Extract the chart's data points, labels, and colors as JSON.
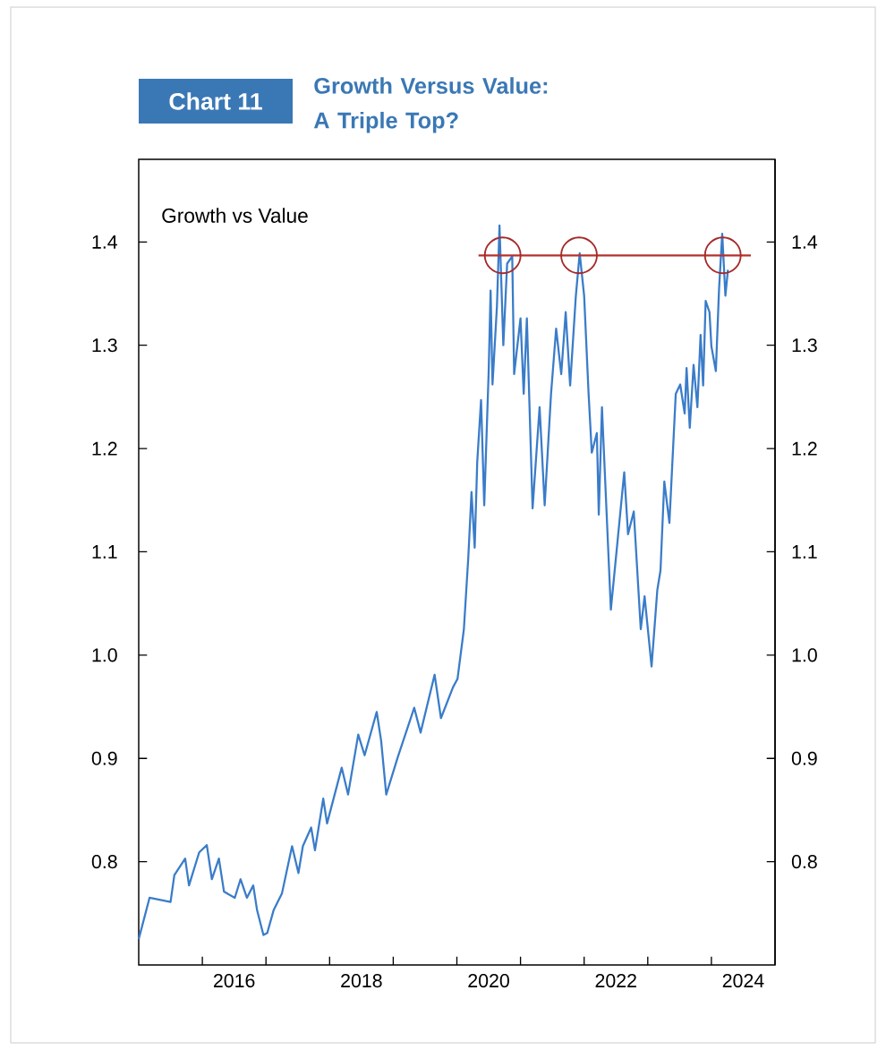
{
  "chart_data": {
    "type": "line",
    "title": "Growth Versus Value: A Triple Top?",
    "subtitle": "Growth vs Value",
    "annotations": [
      "Chart 11"
    ],
    "xlim": [
      2015.0,
      2025.0
    ],
    "xticks": [
      {
        "value": 2016,
        "label": null
      },
      {
        "value": 2017,
        "label": null
      },
      {
        "value": 2018,
        "label": null
      },
      {
        "value": 2019,
        "label": null
      },
      {
        "value": 2020,
        "label": null
      },
      {
        "value": 2021,
        "label": null
      },
      {
        "value": 2022,
        "label": null
      },
      {
        "value": 2023,
        "label": null
      },
      {
        "value": 2024,
        "label": null
      },
      {
        "value": 2016.5,
        "label": "2016"
      },
      {
        "value": 2018.5,
        "label": "2018"
      },
      {
        "value": 2020.5,
        "label": "2020"
      },
      {
        "value": 2022.5,
        "label": "2022"
      },
      {
        "value": 2024.5,
        "label": "2024"
      }
    ],
    "ylim": [
      0.7,
      1.48
    ],
    "yticks": [
      {
        "value": 0.8,
        "label": "0.8"
      },
      {
        "value": 0.9,
        "label": "0.9"
      },
      {
        "value": 1.0,
        "label": "1.0"
      },
      {
        "value": 1.1,
        "label": "1.1"
      },
      {
        "value": 1.2,
        "label": "1.2"
      },
      {
        "value": 1.3,
        "label": "1.3"
      },
      {
        "value": 1.4,
        "label": "1.4"
      }
    ],
    "y2lim": [
      0.7,
      1.48
    ],
    "y2ticks": [
      {
        "value": 0.8,
        "label": "0.8"
      },
      {
        "value": 0.9,
        "label": "0.9"
      },
      {
        "value": 1.0,
        "label": "1.0"
      },
      {
        "value": 1.1,
        "label": "1.1"
      },
      {
        "value": 1.2,
        "label": "1.2"
      },
      {
        "value": 1.3,
        "label": "1.3"
      },
      {
        "value": 1.4,
        "label": "1.4"
      }
    ],
    "series": [
      {
        "color": "#3a7cc9",
        "x": [
          2015.0,
          2015.17,
          2015.5,
          2015.56,
          2015.73,
          2015.79,
          2015.95,
          2016.07,
          2016.15,
          2016.26,
          2016.34,
          2016.51,
          2016.6,
          2016.7,
          2016.8,
          2016.86,
          2016.96,
          2017.02,
          2017.12,
          2017.25,
          2017.41,
          2017.51,
          2017.58,
          2017.71,
          2017.77,
          2017.9,
          2017.96,
          2018.19,
          2018.29,
          2018.45,
          2018.55,
          2018.74,
          2018.81,
          2018.89,
          2019.07,
          2019.33,
          2019.43,
          2019.65,
          2019.75,
          2019.94,
          2020.01,
          2020.11,
          2020.18,
          2020.23,
          2020.28,
          2020.32,
          2020.38,
          2020.43,
          2020.5,
          2020.53,
          2020.56,
          2020.63,
          2020.67,
          2020.73,
          2020.79,
          2020.87,
          2020.9,
          2021.0,
          2021.05,
          2021.1,
          2021.19,
          2021.3,
          2021.38,
          2021.48,
          2021.56,
          2021.64,
          2021.71,
          2021.78,
          2021.87,
          2021.93,
          2022.0,
          2022.07,
          2022.12,
          2022.2,
          2022.23,
          2022.28,
          2022.35,
          2022.42,
          2022.51,
          2022.63,
          2022.69,
          2022.78,
          2022.89,
          2022.95,
          2023.06,
          2023.15,
          2023.2,
          2023.26,
          2023.34,
          2023.44,
          2023.51,
          2023.58,
          2023.61,
          2023.66,
          2023.72,
          2023.78,
          2023.83,
          2023.87,
          2023.91,
          2023.97,
          2024.0,
          2024.07,
          2024.12,
          2024.17,
          2024.22,
          2024.26
        ],
        "values": [
          0.725,
          0.765,
          0.761,
          0.787,
          0.803,
          0.777,
          0.809,
          0.816,
          0.783,
          0.803,
          0.771,
          0.765,
          0.783,
          0.765,
          0.777,
          0.753,
          0.729,
          0.731,
          0.753,
          0.769,
          0.815,
          0.789,
          0.815,
          0.833,
          0.811,
          0.861,
          0.837,
          0.891,
          0.865,
          0.923,
          0.903,
          0.945,
          0.917,
          0.865,
          0.901,
          0.949,
          0.925,
          0.981,
          0.939,
          0.969,
          0.977,
          1.025,
          1.095,
          1.158,
          1.104,
          1.187,
          1.247,
          1.145,
          1.275,
          1.353,
          1.262,
          1.338,
          1.416,
          1.3,
          1.379,
          1.386,
          1.272,
          1.326,
          1.253,
          1.326,
          1.142,
          1.24,
          1.145,
          1.253,
          1.316,
          1.272,
          1.332,
          1.261,
          1.348,
          1.389,
          1.348,
          1.253,
          1.196,
          1.215,
          1.136,
          1.24,
          1.142,
          1.044,
          1.101,
          1.177,
          1.117,
          1.139,
          1.025,
          1.057,
          0.989,
          1.063,
          1.082,
          1.168,
          1.128,
          1.253,
          1.262,
          1.234,
          1.278,
          1.22,
          1.281,
          1.24,
          1.31,
          1.261,
          1.343,
          1.332,
          1.299,
          1.275,
          1.354,
          1.408,
          1.348,
          1.373
        ]
      },
      {
        "type": "line",
        "color": "#b5312c",
        "x": [
          2020.34,
          2024.62
        ],
        "values": [
          1.387,
          1.387
        ]
      },
      {
        "type": "scatter",
        "color": "#a52a2a",
        "marker": "circle",
        "x": [
          2020.72,
          2021.92,
          2024.18
        ],
        "values": [
          1.387,
          1.387,
          1.387
        ]
      }
    ]
  }
}
